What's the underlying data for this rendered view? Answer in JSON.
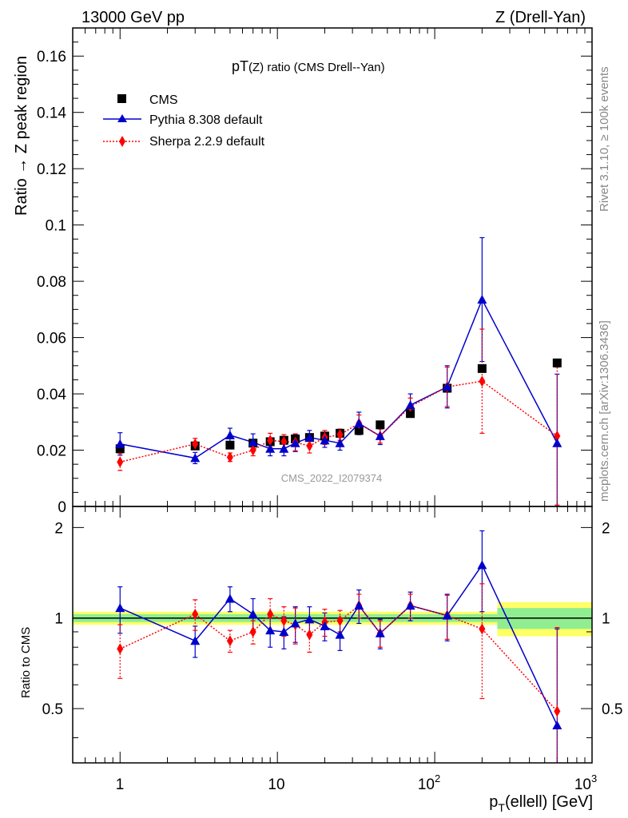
{
  "header": {
    "left": "13000 GeV pp",
    "right": "Z (Drell-Yan)"
  },
  "side_labels": {
    "rivet": "Rivet 3.1.10, ≥ 100k events",
    "mcplots": "mcplots.cern.ch [arXiv:1306.3436]"
  },
  "watermark": "CMS_2022_I2079374",
  "colors": {
    "cms": "#000000",
    "pythia": "#0000cc",
    "sherpa": "#ff0000",
    "band_inner": "#90ee90",
    "band_outer": "#ffff66"
  },
  "chart_data": [
    {
      "type": "scatter",
      "title": "pT(Z) ratio (CMS Drell--Yan)",
      "ylabel": "Ratio → Z peak region",
      "xlabel": "",
      "x_scale": "log",
      "xlim": [
        0.5,
        1000
      ],
      "ylim": [
        0,
        0.17
      ],
      "y_ticks": [
        "0",
        "0.02",
        "0.04",
        "0.06",
        "0.08",
        "0.1",
        "0.12",
        "0.14",
        "0.16"
      ],
      "legend_position": "top-left",
      "series": [
        {
          "name": "CMS",
          "marker": "square",
          "x": [
            1,
            3,
            5,
            7,
            9,
            11,
            13,
            16,
            20,
            25,
            33,
            45,
            70,
            120,
            200,
            600
          ],
          "y": [
            0.0205,
            0.0215,
            0.0218,
            0.0225,
            0.023,
            0.0235,
            0.024,
            0.0245,
            0.025,
            0.026,
            0.027,
            0.029,
            0.033,
            0.042,
            0.049,
            0.051
          ]
        },
        {
          "name": "Pythia 8.308 default",
          "marker": "triangle",
          "line": "solid",
          "x": [
            1,
            3,
            5,
            7,
            9,
            11,
            13,
            16,
            20,
            25,
            33,
            45,
            70,
            120,
            200,
            600
          ],
          "y": [
            0.0222,
            0.0172,
            0.0253,
            0.0228,
            0.0205,
            0.0205,
            0.0225,
            0.0245,
            0.0235,
            0.0225,
            0.0295,
            0.025,
            0.036,
            0.0425,
            0.0735,
            0.0225
          ],
          "err": [
            0.004,
            0.002,
            0.0025,
            0.003,
            0.0025,
            0.0025,
            0.003,
            0.0025,
            0.0025,
            0.0025,
            0.004,
            0.003,
            0.004,
            0.0075,
            0.022,
            0.0245
          ]
        },
        {
          "name": "Sherpa 2.2.9 default",
          "marker": "diamond",
          "line": "dotted",
          "x": [
            1,
            3,
            5,
            7,
            9,
            11,
            13,
            16,
            20,
            25,
            33,
            45,
            70,
            120,
            200,
            600
          ],
          "y": [
            0.0158,
            0.0222,
            0.0175,
            0.02,
            0.0235,
            0.023,
            0.0228,
            0.0215,
            0.0245,
            0.0255,
            0.0295,
            0.025,
            0.0355,
            0.0425,
            0.0445,
            0.025
          ],
          "err": [
            0.003,
            0.002,
            0.0015,
            0.002,
            0.0025,
            0.0025,
            0.003,
            0.0025,
            0.0025,
            0.002,
            0.003,
            0.0025,
            0.003,
            0.007,
            0.0185,
            0.0245
          ]
        }
      ]
    },
    {
      "type": "scatter",
      "title": "",
      "ylabel": "Ratio to CMS",
      "xlabel": "p_T(ellell) [GeV]",
      "x_scale": "log",
      "xlim": [
        0.5,
        1000
      ],
      "x_ticks": [
        "1",
        "10",
        "10^2",
        "10^3"
      ],
      "ylim": [
        0.33,
        2.35
      ],
      "y_scale": "log",
      "y_ticks": [
        "0.5",
        "1",
        "2"
      ],
      "reference_band": {
        "x": [
          0.5,
          250,
          1000
        ],
        "inner": [
          0.03,
          0.03,
          0.08
        ],
        "outer": [
          0.05,
          0.05,
          0.13
        ]
      },
      "series": [
        {
          "name": "Pythia 8.308 default",
          "x": [
            1,
            3,
            5,
            7,
            9,
            11,
            13,
            16,
            20,
            25,
            33,
            45,
            70,
            120,
            200,
            600
          ],
          "y": [
            1.08,
            0.84,
            1.16,
            1.03,
            0.91,
            0.9,
            0.96,
            0.99,
            0.94,
            0.88,
            1.1,
            0.89,
            1.1,
            1.02,
            1.5,
            0.44
          ],
          "err": [
            0.19,
            0.1,
            0.11,
            0.13,
            0.11,
            0.11,
            0.13,
            0.1,
            0.1,
            0.1,
            0.14,
            0.1,
            0.12,
            0.18,
            0.45,
            0.48
          ]
        },
        {
          "name": "Sherpa 2.2.9 default",
          "x": [
            1,
            3,
            5,
            7,
            9,
            11,
            13,
            16,
            20,
            25,
            33,
            45,
            70,
            120,
            200,
            600
          ],
          "y": [
            0.79,
            1.03,
            0.84,
            0.9,
            1.03,
            0.98,
            0.95,
            0.88,
            0.97,
            0.98,
            1.1,
            0.89,
            1.1,
            1.02,
            0.92,
            0.49
          ],
          "err": [
            0.16,
            0.12,
            0.07,
            0.08,
            0.13,
            0.11,
            0.13,
            0.11,
            0.1,
            0.08,
            0.1,
            0.09,
            0.1,
            0.17,
            0.38,
            0.44
          ]
        }
      ]
    }
  ],
  "labels": {
    "title_main": "pT",
    "title_paren": "(Z)",
    "title_rest": " ratio (CMS Drell--Yan)",
    "xlabel_p": "p",
    "xlabel_sub": "T",
    "xlabel_rest": "(ellell) [GeV]",
    "xtick_1": "1",
    "xtick_10": "10",
    "xtick_100_base": "10",
    "xtick_100_exp": "2",
    "xtick_1000_base": "10",
    "xtick_1000_exp": "3"
  }
}
